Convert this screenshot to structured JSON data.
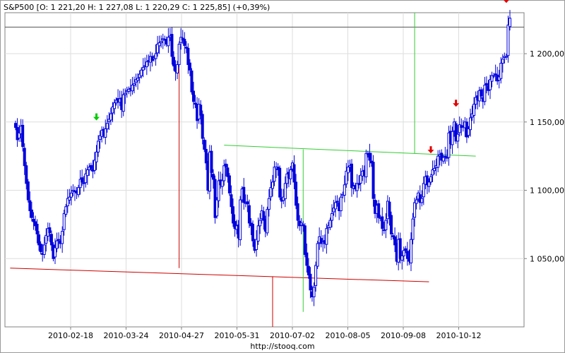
{
  "header": {
    "text": "S&P500 [O: 1 221,20  H: 1 227,08  L: 1 220,29  C: 1 225,85] (+0,39%)"
  },
  "footer": {
    "text": "http://stooq.com"
  },
  "chart_data": {
    "type": "candlestick",
    "title": "S&P500",
    "last_bar": {
      "open": 1221.2,
      "high": 1227.08,
      "low": 1220.29,
      "close": 1225.85,
      "change_pct": 0.39
    },
    "ylim": [
      1000,
      1230
    ],
    "y_ticks": [
      1050,
      1100,
      1150,
      1200
    ],
    "y_tick_labels": [
      "1 050,00",
      "1 100,00",
      "1 150,00",
      "1 200,00"
    ],
    "x_tick_labels": [
      "2010-02-18",
      "2010-03-24",
      "2010-04-27",
      "2010-05-31",
      "2010-07-02",
      "2010-08-05",
      "2010-09-08",
      "2010-10-12"
    ],
    "grid": true,
    "last_price_line": 1219.5,
    "series_colors": {
      "up": "#ffffff",
      "down": "#0000dd",
      "wick": "#0000dd"
    },
    "closes": [
      1146,
      1137,
      1142,
      1147,
      1132,
      1118,
      1105,
      1093,
      1085,
      1080,
      1077,
      1074,
      1068,
      1060,
      1055,
      1053,
      1060,
      1067,
      1072,
      1069,
      1060,
      1050,
      1058,
      1063,
      1064,
      1061,
      1070,
      1083,
      1088,
      1094,
      1095,
      1098,
      1100,
      1099,
      1098,
      1102,
      1108,
      1106,
      1105,
      1112,
      1115,
      1117,
      1116,
      1114,
      1122,
      1128,
      1136,
      1140,
      1144,
      1140,
      1145,
      1149,
      1152,
      1156,
      1161,
      1164,
      1166,
      1165,
      1167,
      1159,
      1170,
      1171,
      1173,
      1174,
      1174,
      1177,
      1178,
      1181,
      1182,
      1185,
      1188,
      1190,
      1191,
      1194,
      1195,
      1198,
      1195,
      1197,
      1200,
      1207,
      1208,
      1209,
      1211,
      1210,
      1207,
      1212,
      1213,
      1198,
      1191,
      1187,
      1192,
      1207,
      1212,
      1210,
      1206,
      1204,
      1192,
      1188,
      1172,
      1165,
      1163,
      1151,
      1163,
      1155,
      1138,
      1130,
      1120,
      1100,
      1128,
      1113,
      1108,
      1080,
      1093,
      1107,
      1104,
      1107,
      1118,
      1117,
      1110,
      1098,
      1088,
      1076,
      1072,
      1074,
      1065,
      1093,
      1101,
      1091,
      1091,
      1090,
      1076,
      1074,
      1063,
      1056,
      1064,
      1074,
      1078,
      1085,
      1078,
      1070,
      1086,
      1094,
      1102,
      1106,
      1117,
      1117,
      1115,
      1095,
      1092,
      1095,
      1105,
      1112,
      1109,
      1115,
      1120,
      1106,
      1089,
      1078,
      1074,
      1076,
      1074,
      1053,
      1045,
      1038,
      1027,
      1022,
      1029,
      1045,
      1061,
      1066,
      1061,
      1062,
      1061,
      1072,
      1074,
      1078,
      1083,
      1087,
      1091,
      1092,
      1085,
      1095,
      1097,
      1104,
      1114,
      1117,
      1118,
      1102,
      1103,
      1101,
      1105,
      1104,
      1111,
      1114,
      1111,
      1127,
      1126,
      1122,
      1120,
      1094,
      1083,
      1089,
      1080,
      1080,
      1072,
      1071,
      1078,
      1092,
      1081,
      1068,
      1066,
      1060,
      1048,
      1064,
      1050,
      1052,
      1056,
      1056,
      1050,
      1048,
      1064,
      1079,
      1091,
      1093,
      1098,
      1091,
      1094,
      1105,
      1110,
      1104,
      1106,
      1110,
      1115,
      1116,
      1118,
      1125,
      1126,
      1122,
      1124,
      1125,
      1124,
      1142,
      1134,
      1143,
      1150,
      1136,
      1141,
      1148,
      1146,
      1147,
      1150,
      1139,
      1145,
      1153,
      1156,
      1163,
      1168,
      1166,
      1173,
      1169,
      1165,
      1177,
      1177,
      1173,
      1181,
      1184,
      1184,
      1185,
      1180,
      1183,
      1193,
      1196,
      1198,
      1198,
      1221,
      1226
    ],
    "annotations": [
      {
        "type": "arrow",
        "direction": "down",
        "color": "#00cc00",
        "index": 45
      },
      {
        "type": "arrow",
        "direction": "down",
        "color": "#e00000",
        "index": 231
      },
      {
        "type": "arrow",
        "direction": "down",
        "color": "#e00000",
        "index": 245
      },
      {
        "type": "arrow",
        "direction": "down",
        "color": "#e00000",
        "index": 273
      },
      {
        "type": "trendline",
        "color": "#cc0000",
        "from": [
          -3,
          1043
        ],
        "to": [
          230,
          1033
        ]
      },
      {
        "type": "trendline",
        "color": "#33cc33",
        "from": [
          116,
          1133
        ],
        "to": [
          256,
          1125
        ]
      },
      {
        "type": "vline",
        "color": "#cc0000",
        "index": 91,
        "from": 1190,
        "to": 1043
      },
      {
        "type": "vline",
        "color": "#cc0000",
        "index": 143,
        "from": 1037,
        "to": 984
      },
      {
        "type": "vline",
        "color": "#33cc33",
        "index": 160,
        "from": 1130,
        "to": 1011
      },
      {
        "type": "vline",
        "color": "#33cc33",
        "index": 222,
        "from": 1250,
        "to": 1127
      }
    ]
  }
}
